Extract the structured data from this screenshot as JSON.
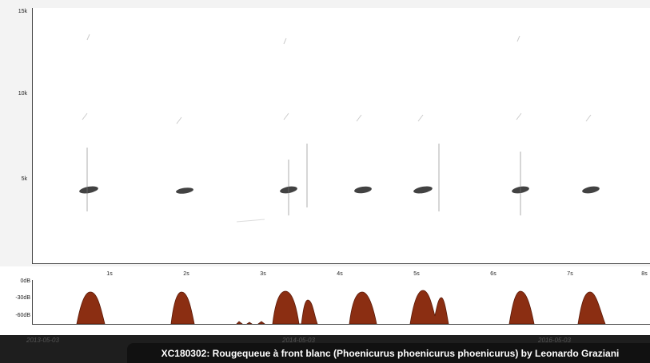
{
  "spectrogram": {
    "y_ticks": [
      "15k",
      "10k",
      "5k"
    ],
    "x_ticks": [
      "1s",
      "2s",
      "3s",
      "4s",
      "5s",
      "6s",
      "7s",
      "8s"
    ]
  },
  "oscillogram": {
    "db_ticks": [
      "0dB",
      "-30dB",
      "-60dB"
    ]
  },
  "timeline": {
    "dates": [
      "2013-05-03",
      "2014-05-03",
      "2016-05-03"
    ]
  },
  "caption": "XC180302: Rougequeue à front blanc (Phoenicurus phoenicurus phoenicurus) by Leonardo Graziani",
  "colors": {
    "envelope_fill": "#8b2e12",
    "caption_bg": "#111111"
  }
}
